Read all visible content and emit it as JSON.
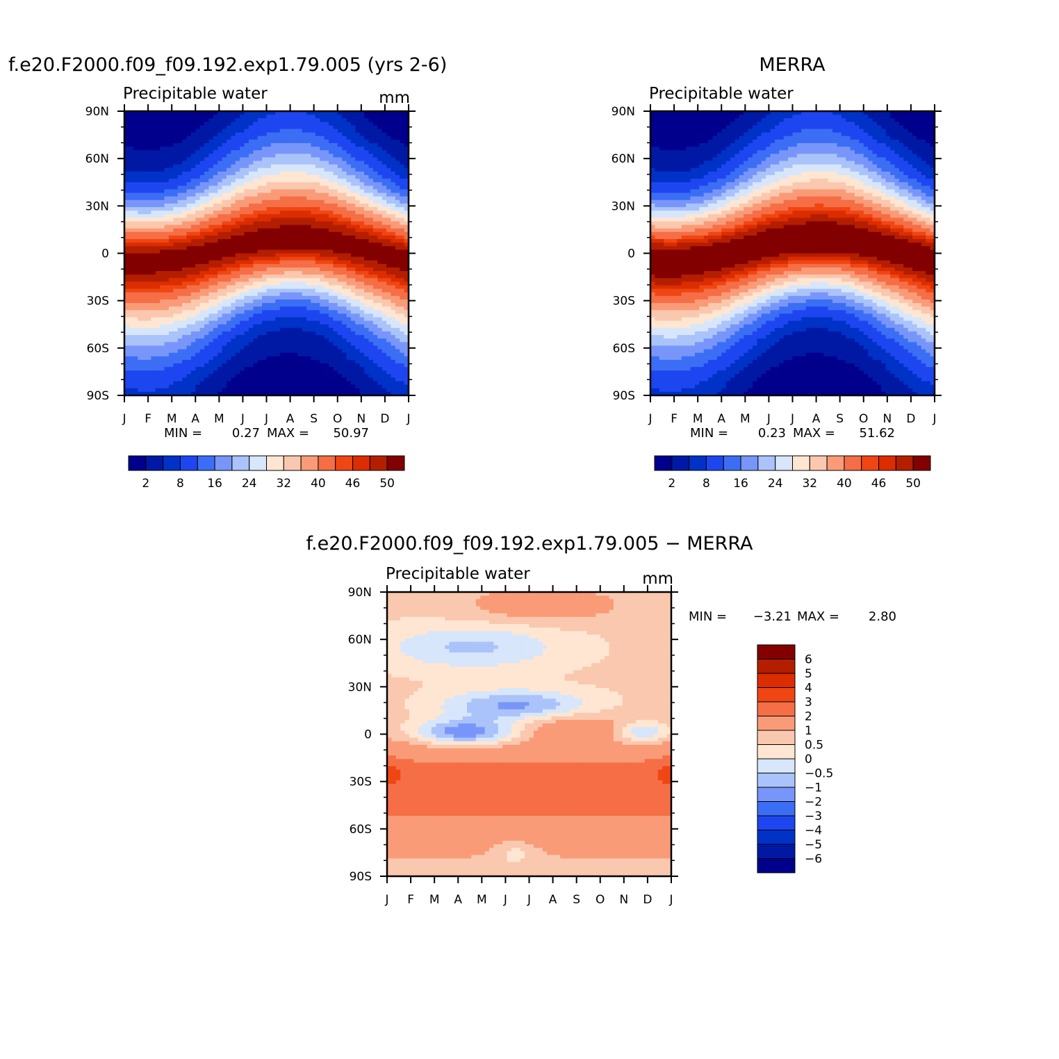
{
  "chart_data": [
    {
      "id": "model",
      "type": "heatmap",
      "title": "f.e20.F2000.f09_f09.192.exp1.79.005 (yrs 2-6)",
      "subtitle": "Precipitable water",
      "units": "mm",
      "months": [
        "J",
        "F",
        "M",
        "A",
        "M",
        "J",
        "J",
        "A",
        "S",
        "O",
        "N",
        "D",
        "J"
      ],
      "lat_ticks": [
        "90N",
        "60N",
        "30N",
        "0",
        "30S",
        "60S",
        "90S"
      ],
      "stats": {
        "min_label": "MIN =",
        "min": "0.27",
        "max_label": "MAX =",
        "max": "50.97"
      },
      "colorbar_labels": [
        "2",
        "8",
        "16",
        "24",
        "32",
        "40",
        "46",
        "50"
      ],
      "equator_peak": 50.97,
      "itcz_lat": [
        -4,
        -4,
        -3,
        -1,
        2,
        5,
        7,
        8,
        8,
        6,
        3,
        0,
        -4
      ],
      "levels": [
        2,
        5,
        8,
        12,
        16,
        20,
        24,
        28,
        32,
        36,
        40,
        44,
        46,
        48,
        50
      ]
    },
    {
      "id": "merra",
      "type": "heatmap",
      "title": "MERRA",
      "subtitle": "Precipitable water",
      "units": "",
      "months": [
        "J",
        "F",
        "M",
        "A",
        "M",
        "J",
        "J",
        "A",
        "S",
        "O",
        "N",
        "D",
        "J"
      ],
      "lat_ticks": [
        "90N",
        "60N",
        "30N",
        "0",
        "30S",
        "60S",
        "90S"
      ],
      "stats": {
        "min_label": "MIN =",
        "min": "0.23",
        "max_label": "MAX =",
        "max": "51.62"
      },
      "colorbar_labels": [
        "2",
        "8",
        "16",
        "24",
        "32",
        "40",
        "46",
        "50"
      ],
      "equator_peak": 51.62,
      "itcz_lat": [
        -4,
        -4,
        -3,
        -1,
        2,
        5,
        7,
        8,
        8,
        6,
        3,
        0,
        -4
      ],
      "levels": [
        2,
        5,
        8,
        12,
        16,
        20,
        24,
        28,
        32,
        36,
        40,
        44,
        46,
        48,
        50
      ]
    },
    {
      "id": "diff",
      "type": "heatmap",
      "title": "f.e20.F2000.f09_f09.192.exp1.79.005 − MERRA",
      "subtitle": "Precipitable water",
      "units": "mm",
      "months": [
        "J",
        "F",
        "M",
        "A",
        "M",
        "J",
        "J",
        "A",
        "S",
        "O",
        "N",
        "D",
        "J"
      ],
      "lat_ticks": [
        "90N",
        "60N",
        "30N",
        "0",
        "30S",
        "60S",
        "90S"
      ],
      "stats": {
        "min_label": "MIN =",
        "min": "−3.21",
        "max_label": "MAX =",
        "max": "2.80"
      },
      "colorbar_labels": [
        "6",
        "5",
        "4",
        "3",
        "2",
        "1",
        "0.5",
        "0",
        "−0.5",
        "−1",
        "−2",
        "−3",
        "−4",
        "−5",
        "−6"
      ],
      "levels": [
        -6,
        -5,
        -4,
        -3,
        -2,
        -1,
        -0.5,
        0,
        0.5,
        1,
        2,
        3,
        4,
        5,
        6
      ]
    }
  ],
  "palettes": {
    "full": [
      "#00008c",
      "#0019a5",
      "#0032c8",
      "#1e46f0",
      "#3c6ef5",
      "#7896fa",
      "#aac3fa",
      "#d7e6fa",
      "#ffe6d2",
      "#fac8af",
      "#fa9b78",
      "#f56e46",
      "#f04614",
      "#dc2d00",
      "#b41e00",
      "#820000"
    ],
    "diff": [
      "#00008c",
      "#0019a5",
      "#0032c8",
      "#1e46f0",
      "#3c6ef5",
      "#7896fa",
      "#aac3fa",
      "#d7e6fa",
      "#ffe6d2",
      "#fac8af",
      "#fa9b78",
      "#f56e46",
      "#f04614",
      "#dc2d00",
      "#b41e00",
      "#820000"
    ]
  }
}
